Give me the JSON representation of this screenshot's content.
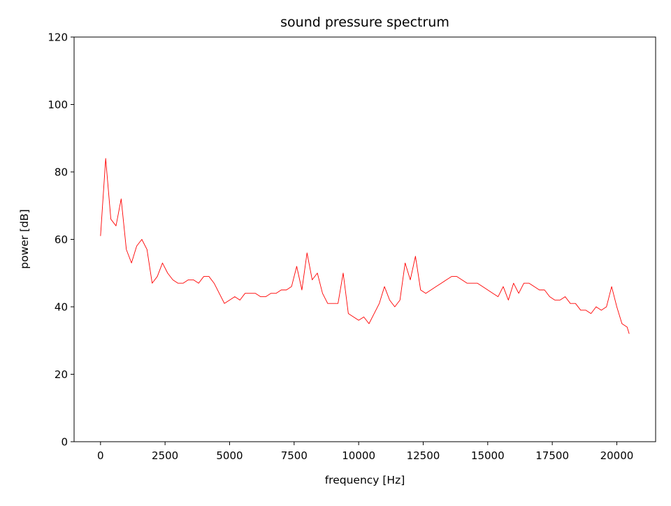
{
  "chart_data": {
    "type": "line",
    "title": "sound pressure spectrum",
    "x_label": "frequency [Hz]",
    "y_label": "power [dB]",
    "x": [
      0,
      200,
      400,
      600,
      800,
      1000,
      1200,
      1400,
      1600,
      1800,
      2000,
      2200,
      2400,
      2600,
      2800,
      3000,
      3200,
      3400,
      3600,
      3800,
      4000,
      4200,
      4400,
      4600,
      4800,
      5000,
      5200,
      5400,
      5600,
      5800,
      6000,
      6200,
      6400,
      6600,
      6800,
      7000,
      7200,
      7400,
      7600,
      7800,
      8000,
      8200,
      8400,
      8600,
      8800,
      9000,
      9200,
      9400,
      9600,
      9800,
      10000,
      10200,
      10400,
      10600,
      10800,
      11000,
      11200,
      11400,
      11600,
      11800,
      12000,
      12200,
      12400,
      12600,
      12800,
      13000,
      13200,
      13400,
      13600,
      13800,
      14000,
      14200,
      14400,
      14600,
      14800,
      15000,
      15200,
      15400,
      15600,
      15800,
      16000,
      16200,
      16400,
      16600,
      16800,
      17000,
      17200,
      17400,
      17600,
      17800,
      18000,
      18200,
      18400,
      18600,
      18800,
      19000,
      19200,
      19400,
      19600,
      19800,
      20000,
      20200,
      20400,
      20480
    ],
    "series": [
      {
        "color": "#ff0000",
        "values": [
          61,
          84,
          66,
          64,
          72,
          57,
          53,
          58,
          60,
          57,
          47,
          49,
          53,
          50,
          48,
          47,
          47,
          48,
          48,
          47,
          49,
          49,
          47,
          44,
          41,
          42,
          43,
          42,
          44,
          44,
          44,
          43,
          43,
          44,
          44,
          45,
          45,
          46,
          52,
          45,
          56,
          48,
          50,
          44,
          41,
          41,
          41,
          50,
          38,
          37,
          36,
          37,
          35,
          38,
          41,
          46,
          42,
          40,
          42,
          53,
          48,
          55,
          45,
          44,
          45,
          46,
          47,
          48,
          49,
          49,
          48,
          47,
          47,
          47,
          46,
          45,
          44,
          43,
          46,
          42,
          47,
          44,
          47,
          47,
          46,
          45,
          45,
          43,
          42,
          42,
          43,
          41,
          41,
          39,
          39,
          38,
          40,
          39,
          40,
          46,
          40,
          35,
          34,
          32
        ]
      }
    ],
    "xlim": [
      -1024,
      21504
    ],
    "ylim": [
      0,
      120
    ],
    "xticks": [
      0,
      2500,
      5000,
      7500,
      10000,
      12500,
      15000,
      17500,
      20000
    ],
    "yticks": [
      0,
      20,
      40,
      60,
      80,
      100,
      120
    ]
  }
}
